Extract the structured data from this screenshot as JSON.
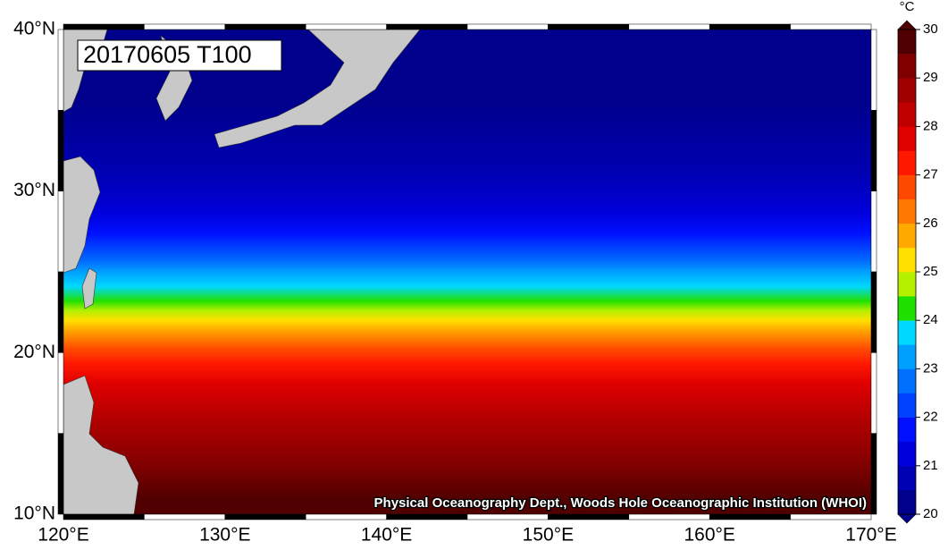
{
  "map": {
    "title": "20170605 T100",
    "credit": "Physical Oceanography Dept., Woods Hole Oceanographic Institution (WHOI)",
    "lon_labels": [
      "120°E",
      "130°E",
      "140°E",
      "150°E",
      "160°E",
      "170°E"
    ],
    "lat_labels": [
      "40°N",
      "30°N",
      "20°N",
      "10°N"
    ],
    "colorbar": {
      "unit": "°C",
      "ticks": [
        20,
        21,
        22,
        23,
        24,
        25,
        26,
        27,
        28,
        29,
        30
      ],
      "colors": [
        "#00008c",
        "#0000b4",
        "#0000dc",
        "#0010ff",
        "#0040ff",
        "#0070ff",
        "#00a0ff",
        "#00d8ff",
        "#20e000",
        "#b4f000",
        "#ffe000",
        "#ffa800",
        "#ff7800",
        "#ff4800",
        "#ff1800",
        "#e00000",
        "#c00000",
        "#a00000",
        "#800000",
        "#500000"
      ]
    }
  }
}
